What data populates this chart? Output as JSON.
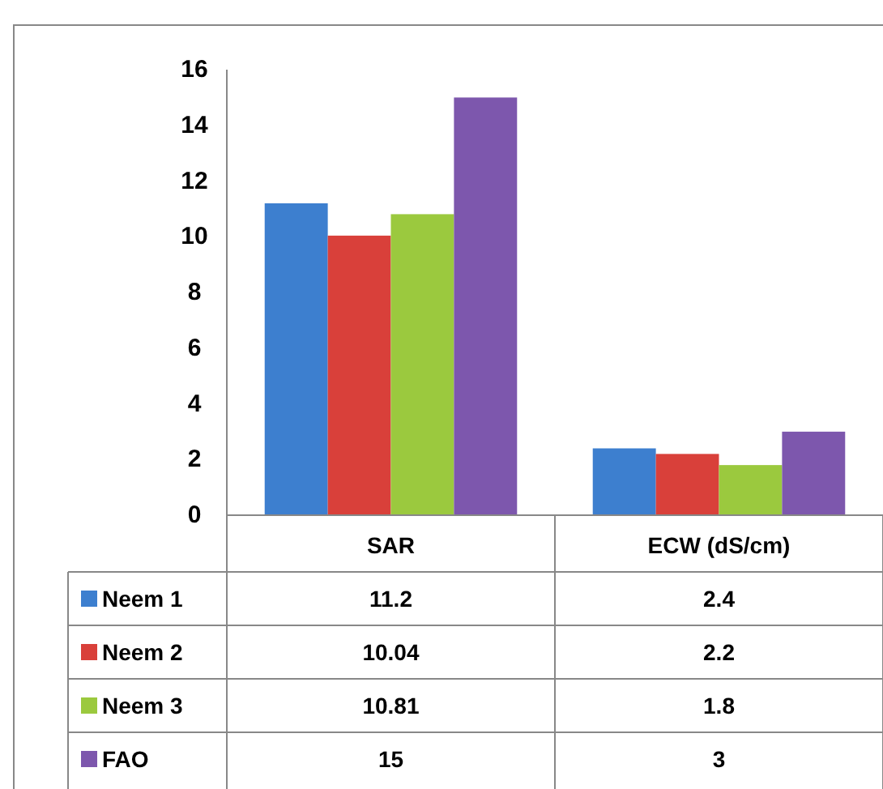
{
  "chart_data": {
    "type": "bar",
    "categories": [
      "SAR",
      "ECW (dS/cm)"
    ],
    "series": [
      {
        "name": "Neem 1",
        "color": "#3d7fcf",
        "values": [
          11.2,
          2.4
        ]
      },
      {
        "name": "Neem 2",
        "color": "#d9403a",
        "values": [
          10.04,
          2.2
        ]
      },
      {
        "name": "Neem 3",
        "color": "#9bc93e",
        "values": [
          10.81,
          1.8
        ]
      },
      {
        "name": "FAO",
        "color": "#7d57ad",
        "values": [
          15,
          3
        ]
      }
    ],
    "ylim": [
      0,
      16
    ],
    "yticks": [
      0,
      2,
      4,
      6,
      8,
      10,
      12,
      14,
      16
    ],
    "grid": false,
    "legend": "bottom",
    "data_labels": true
  }
}
